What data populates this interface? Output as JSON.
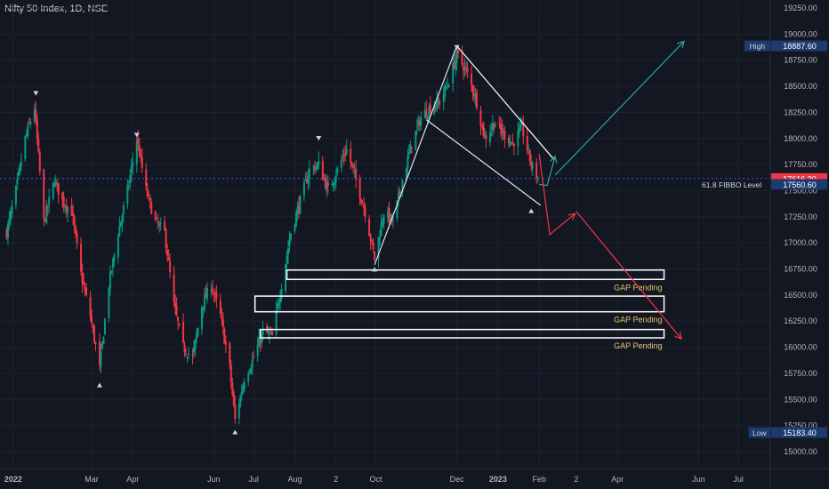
{
  "header": {
    "symbol_title": "Nifty 50 Index, 1D, NSE"
  },
  "chart_data": {
    "type": "candlestick",
    "title": "Nifty 50 Index, 1D, NSE",
    "ylim": [
      15000,
      19350
    ],
    "y_ticks": [
      15000,
      15250,
      15500,
      15750,
      16000,
      16250,
      16500,
      16750,
      17000,
      17250,
      17500,
      17750,
      18000,
      18250,
      18500,
      18750,
      19000,
      19250
    ],
    "y_tick_labels": [
      "15000.00",
      "15250.00",
      "15500.00",
      "15750.00",
      "16000.00",
      "16250.00",
      "16500.00",
      "16750.00",
      "17000.00",
      "17250.00",
      "17500.00",
      "17750.00",
      "18000.00",
      "18250.00",
      "18500.00",
      "18750.00",
      "19000.00",
      "19250.00"
    ],
    "x_ticks": [
      {
        "label": "2022",
        "date": "2022-01-01",
        "bold": true
      },
      {
        "label": "Mar",
        "date": "2022-03-01",
        "bold": false
      },
      {
        "label": "Apr",
        "date": "2022-04-01",
        "bold": false
      },
      {
        "label": "Jun",
        "date": "2022-06-01",
        "bold": false
      },
      {
        "label": "Jul",
        "date": "2022-07-01",
        "bold": false
      },
      {
        "label": "Aug",
        "date": "2022-08-01",
        "bold": false
      },
      {
        "label": "2",
        "date": "2022-09-01",
        "bold": false
      },
      {
        "label": "Oct",
        "date": "2022-10-01",
        "bold": false
      },
      {
        "label": "Dec",
        "date": "2022-12-01",
        "bold": false
      },
      {
        "label": "2023",
        "date": "2023-01-01",
        "bold": true
      },
      {
        "label": "Feb",
        "date": "2023-02-01",
        "bold": false
      },
      {
        "label": "2",
        "date": "2023-03-01",
        "bold": false
      },
      {
        "label": "Apr",
        "date": "2023-04-01",
        "bold": false
      },
      {
        "label": "Jun",
        "date": "2023-06-01",
        "bold": false
      },
      {
        "label": "Jul",
        "date": "2023-07-01",
        "bold": false
      }
    ],
    "x_range": [
      "2021-12-22",
      "2023-07-25"
    ],
    "price_tags": [
      {
        "label": "High",
        "value": 18887.6,
        "text": "18887.60",
        "color": "#1e3a6e"
      },
      {
        "label": "",
        "value": 17616.3,
        "text": "17616.30",
        "color": "#f23645"
      },
      {
        "label": "61.8 FIBBO Level",
        "value": 17560.6,
        "text": "17560.60",
        "color": "#1e3a6e"
      },
      {
        "label": "Low",
        "value": 15183.4,
        "text": "15183.40",
        "color": "#1e3a6e"
      }
    ],
    "current_price": 17616.3,
    "up_color": "#089981",
    "down_color": "#f23645",
    "series_anchors": [
      [
        "2021-12-27",
        17100
      ],
      [
        "2022-01-03",
        17500
      ],
      [
        "2022-01-10",
        18000
      ],
      [
        "2022-01-17",
        18300
      ],
      [
        "2022-01-24",
        17200
      ],
      [
        "2022-02-01",
        17600
      ],
      [
        "2022-02-07",
        17400
      ],
      [
        "2022-02-14",
        17300
      ],
      [
        "2022-02-21",
        16700
      ],
      [
        "2022-02-28",
        16300
      ],
      [
        "2022-03-07",
        15800
      ],
      [
        "2022-03-14",
        16600
      ],
      [
        "2022-03-21",
        17100
      ],
      [
        "2022-03-28",
        17500
      ],
      [
        "2022-04-04",
        18000
      ],
      [
        "2022-04-11",
        17500
      ],
      [
        "2022-04-18",
        17200
      ],
      [
        "2022-04-25",
        17100
      ],
      [
        "2022-05-02",
        16400
      ],
      [
        "2022-05-09",
        16000
      ],
      [
        "2022-05-16",
        15900
      ],
      [
        "2022-05-23",
        16400
      ],
      [
        "2022-05-30",
        16600
      ],
      [
        "2022-06-06",
        16300
      ],
      [
        "2022-06-13",
        15800
      ],
      [
        "2022-06-17",
        15300
      ],
      [
        "2022-06-24",
        15700
      ],
      [
        "2022-07-01",
        15900
      ],
      [
        "2022-07-08",
        16150
      ],
      [
        "2022-07-15",
        16100
      ],
      [
        "2022-07-22",
        16600
      ],
      [
        "2022-07-29",
        17100
      ],
      [
        "2022-08-05",
        17400
      ],
      [
        "2022-08-12",
        17700
      ],
      [
        "2022-08-19",
        17750
      ],
      [
        "2022-08-26",
        17500
      ],
      [
        "2022-09-02",
        17700
      ],
      [
        "2022-09-09",
        17900
      ],
      [
        "2022-09-16",
        17600
      ],
      [
        "2022-09-23",
        17300
      ],
      [
        "2022-09-30",
        16850
      ],
      [
        "2022-10-07",
        17300
      ],
      [
        "2022-10-14",
        17200
      ],
      [
        "2022-10-21",
        17600
      ],
      [
        "2022-10-28",
        17950
      ],
      [
        "2022-11-04",
        18200
      ],
      [
        "2022-11-11",
        18300
      ],
      [
        "2022-11-18",
        18350
      ],
      [
        "2022-11-25",
        18550
      ],
      [
        "2022-12-01",
        18800
      ],
      [
        "2022-12-08",
        18650
      ],
      [
        "2022-12-15",
        18400
      ],
      [
        "2022-12-22",
        18000
      ],
      [
        "2022-12-29",
        18150
      ],
      [
        "2023-01-05",
        18050
      ],
      [
        "2023-01-12",
        17950
      ],
      [
        "2023-01-19",
        18100
      ],
      [
        "2023-01-26",
        17750
      ],
      [
        "2023-02-01",
        17600
      ]
    ],
    "swing_markers": [
      {
        "date": "2022-01-18",
        "value": 18420,
        "dir": "down"
      },
      {
        "date": "2022-03-07",
        "value": 15650,
        "dir": "up"
      },
      {
        "date": "2022-04-04",
        "value": 18020,
        "dir": "down"
      },
      {
        "date": "2022-06-17",
        "value": 15200,
        "dir": "up"
      },
      {
        "date": "2022-08-19",
        "value": 17990,
        "dir": "down"
      },
      {
        "date": "2022-09-30",
        "value": 16760,
        "dir": "up"
      },
      {
        "date": "2022-12-01",
        "value": 18860,
        "dir": "down"
      },
      {
        "date": "2023-01-26",
        "value": 17320,
        "dir": "up"
      }
    ],
    "drawings": {
      "rally_line": [
        [
          "2022-09-30",
          16790
        ],
        [
          "2022-12-01",
          18887.6
        ]
      ],
      "upper_trend_line": [
        [
          "2022-12-01",
          18887.6
        ],
        [
          "2023-02-12",
          17800
        ]
      ],
      "lower_trend_line": [
        [
          "2022-11-08",
          18180
        ],
        [
          "2023-02-02",
          17360
        ]
      ],
      "bull_arrow_short": [
        [
          "2023-02-01",
          17560
        ],
        [
          "2023-02-07",
          17550
        ],
        [
          "2023-02-13",
          17830
        ]
      ],
      "bull_arrow_long": [
        [
          "2023-02-13",
          17650
        ],
        [
          "2023-05-21",
          18930
        ]
      ],
      "bear_arrow_short": [
        [
          "2023-02-01",
          17850
        ],
        [
          "2023-02-09",
          17080
        ],
        [
          "2023-02-28",
          17280
        ]
      ],
      "bear_arrow_long": [
        [
          "2023-03-01",
          17300
        ],
        [
          "2023-05-19",
          16080
        ]
      ]
    },
    "gap_zones": [
      {
        "label": "GAP Pending",
        "from": "2022-07-26",
        "to": "2023-05-06",
        "top": 16740,
        "bottom": 16650
      },
      {
        "label": "GAP Pending",
        "from": "2022-07-02",
        "to": "2023-05-06",
        "top": 16490,
        "bottom": 16340
      },
      {
        "label": "GAP Pending",
        "from": "2022-07-06",
        "to": "2023-05-06",
        "top": 16170,
        "bottom": 16090
      }
    ]
  }
}
